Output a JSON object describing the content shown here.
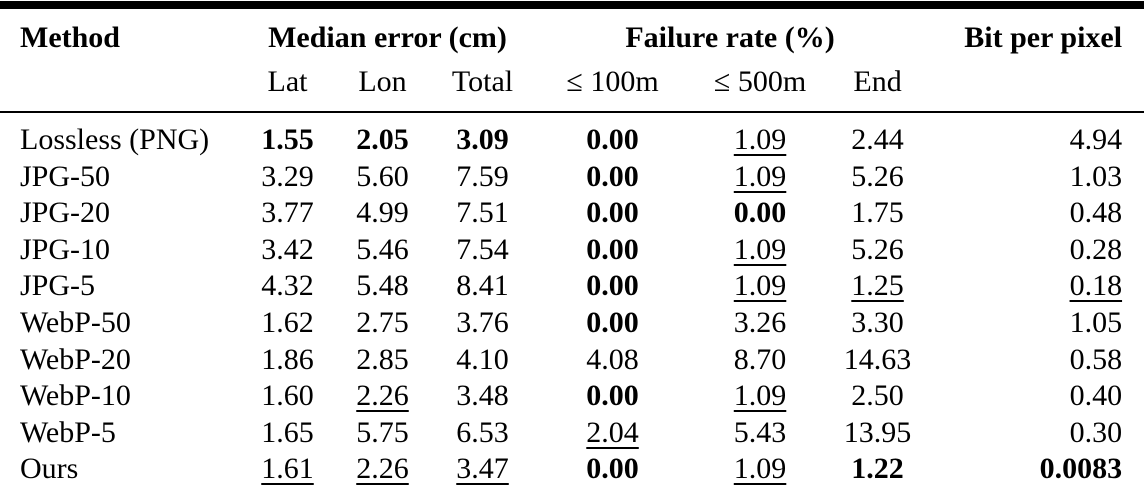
{
  "meta": {
    "background_color": "#ffffff",
    "text_color": "#000000",
    "rule_color": "#000000"
  },
  "table": {
    "header": {
      "method_label": "Method",
      "group_median_error": {
        "label": "Median error (cm)",
        "subcols": [
          "Lat",
          "Lon",
          "Total"
        ]
      },
      "group_failure_rate": {
        "label": "Failure rate (%)",
        "subcols": [
          "≤ 100m",
          "≤ 500m",
          "End"
        ]
      },
      "bit_per_pixel_label": "Bit per pixel"
    },
    "rows": [
      {
        "method": "Lossless (PNG)",
        "cells": [
          {
            "v": "1.55",
            "bold": true
          },
          {
            "v": "2.05",
            "bold": true
          },
          {
            "v": "3.09",
            "bold": true
          },
          {
            "v": "0.00",
            "bold": true
          },
          {
            "v": "1.09",
            "underline": true
          },
          {
            "v": "2.44"
          },
          {
            "v": "4.94"
          }
        ]
      },
      {
        "method": "JPG-50",
        "cells": [
          {
            "v": "3.29"
          },
          {
            "v": "5.60"
          },
          {
            "v": "7.59"
          },
          {
            "v": "0.00",
            "bold": true
          },
          {
            "v": "1.09",
            "underline": true
          },
          {
            "v": "5.26"
          },
          {
            "v": "1.03"
          }
        ]
      },
      {
        "method": "JPG-20",
        "cells": [
          {
            "v": "3.77"
          },
          {
            "v": "4.99"
          },
          {
            "v": "7.51"
          },
          {
            "v": "0.00",
            "bold": true
          },
          {
            "v": "0.00",
            "bold": true
          },
          {
            "v": "1.75"
          },
          {
            "v": "0.48"
          }
        ]
      },
      {
        "method": "JPG-10",
        "cells": [
          {
            "v": "3.42"
          },
          {
            "v": "5.46"
          },
          {
            "v": "7.54"
          },
          {
            "v": "0.00",
            "bold": true
          },
          {
            "v": "1.09",
            "underline": true
          },
          {
            "v": "5.26"
          },
          {
            "v": "0.28"
          }
        ]
      },
      {
        "method": "JPG-5",
        "cells": [
          {
            "v": "4.32"
          },
          {
            "v": "5.48"
          },
          {
            "v": "8.41"
          },
          {
            "v": "0.00",
            "bold": true
          },
          {
            "v": "1.09",
            "underline": true
          },
          {
            "v": "1.25",
            "underline": true
          },
          {
            "v": "0.18",
            "underline": true
          }
        ]
      },
      {
        "method": "WebP-50",
        "cells": [
          {
            "v": "1.62"
          },
          {
            "v": "2.75"
          },
          {
            "v": "3.76"
          },
          {
            "v": "0.00",
            "bold": true
          },
          {
            "v": "3.26"
          },
          {
            "v": "3.30"
          },
          {
            "v": "1.05"
          }
        ]
      },
      {
        "method": "WebP-20",
        "cells": [
          {
            "v": "1.86"
          },
          {
            "v": "2.85"
          },
          {
            "v": "4.10"
          },
          {
            "v": "4.08"
          },
          {
            "v": "8.70"
          },
          {
            "v": "14.63"
          },
          {
            "v": "0.58"
          }
        ]
      },
      {
        "method": "WebP-10",
        "cells": [
          {
            "v": "1.60"
          },
          {
            "v": "2.26",
            "underline": true
          },
          {
            "v": "3.48"
          },
          {
            "v": "0.00",
            "bold": true
          },
          {
            "v": "1.09",
            "underline": true
          },
          {
            "v": "2.50"
          },
          {
            "v": "0.40"
          }
        ]
      },
      {
        "method": "WebP-5",
        "cells": [
          {
            "v": "1.65"
          },
          {
            "v": "5.75"
          },
          {
            "v": "6.53"
          },
          {
            "v": "2.04",
            "underline": true
          },
          {
            "v": "5.43"
          },
          {
            "v": "13.95"
          },
          {
            "v": "0.30"
          }
        ]
      },
      {
        "method": "Ours",
        "cells": [
          {
            "v": "1.61",
            "underline": true
          },
          {
            "v": "2.26",
            "underline": true
          },
          {
            "v": "3.47",
            "underline": true
          },
          {
            "v": "0.00",
            "bold": true
          },
          {
            "v": "1.09",
            "underline": true
          },
          {
            "v": "1.22",
            "bold": true
          },
          {
            "v": "0.0083",
            "bold": true
          }
        ]
      }
    ]
  }
}
